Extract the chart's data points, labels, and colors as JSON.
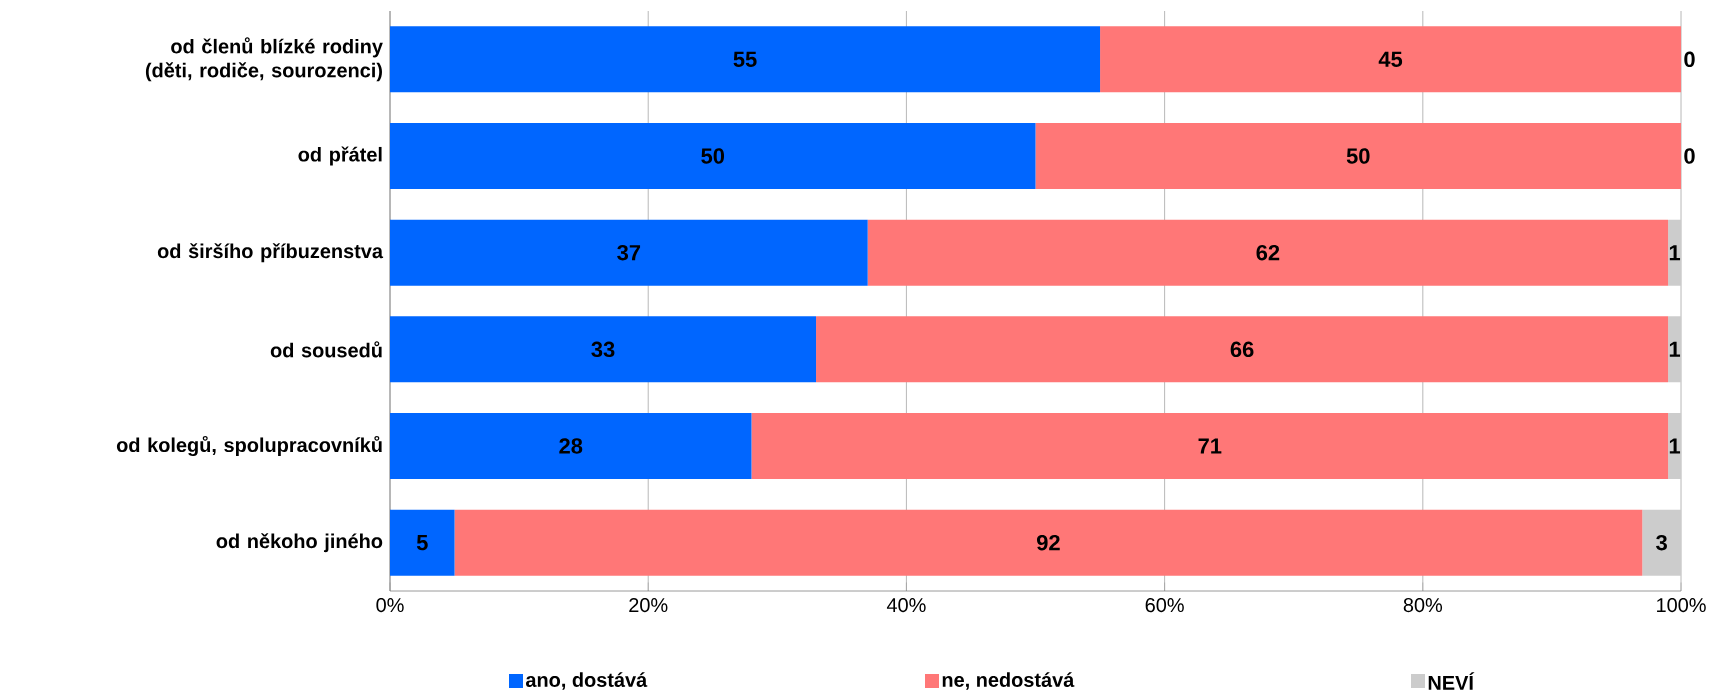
{
  "chart_data": {
    "type": "bar",
    "orientation": "horizontal",
    "stacked": true,
    "data_labels": true,
    "grid": "x",
    "legend": "bottom",
    "categories": [
      "od členů blízké rodiny (děti, rodiče, sourozenci)",
      "od přátel",
      "od širšího příbuzenstva",
      "od sousedů",
      "od kolegů, spolupracovníků",
      "od někoho jiného"
    ],
    "series": [
      {
        "name": "ano, dostává",
        "color": "#0066ff",
        "values": [
          55,
          50,
          37,
          33,
          28,
          5
        ]
      },
      {
        "name": "ne, nedostává",
        "color": "#ff7777",
        "values": [
          45,
          50,
          62,
          66,
          71,
          92
        ]
      },
      {
        "name": "NEVÍ",
        "color": "#cccccc",
        "values": [
          0,
          0,
          1,
          1,
          1,
          3
        ]
      }
    ],
    "xlim": [
      0,
      100
    ],
    "xticks": [
      {
        "value": 0,
        "label": "0%"
      },
      {
        "value": 20,
        "label": "20%"
      },
      {
        "value": 40,
        "label": "40%"
      },
      {
        "value": 60,
        "label": "60%"
      },
      {
        "value": 80,
        "label": "80%"
      },
      {
        "value": 100,
        "label": "100%"
      }
    ]
  }
}
